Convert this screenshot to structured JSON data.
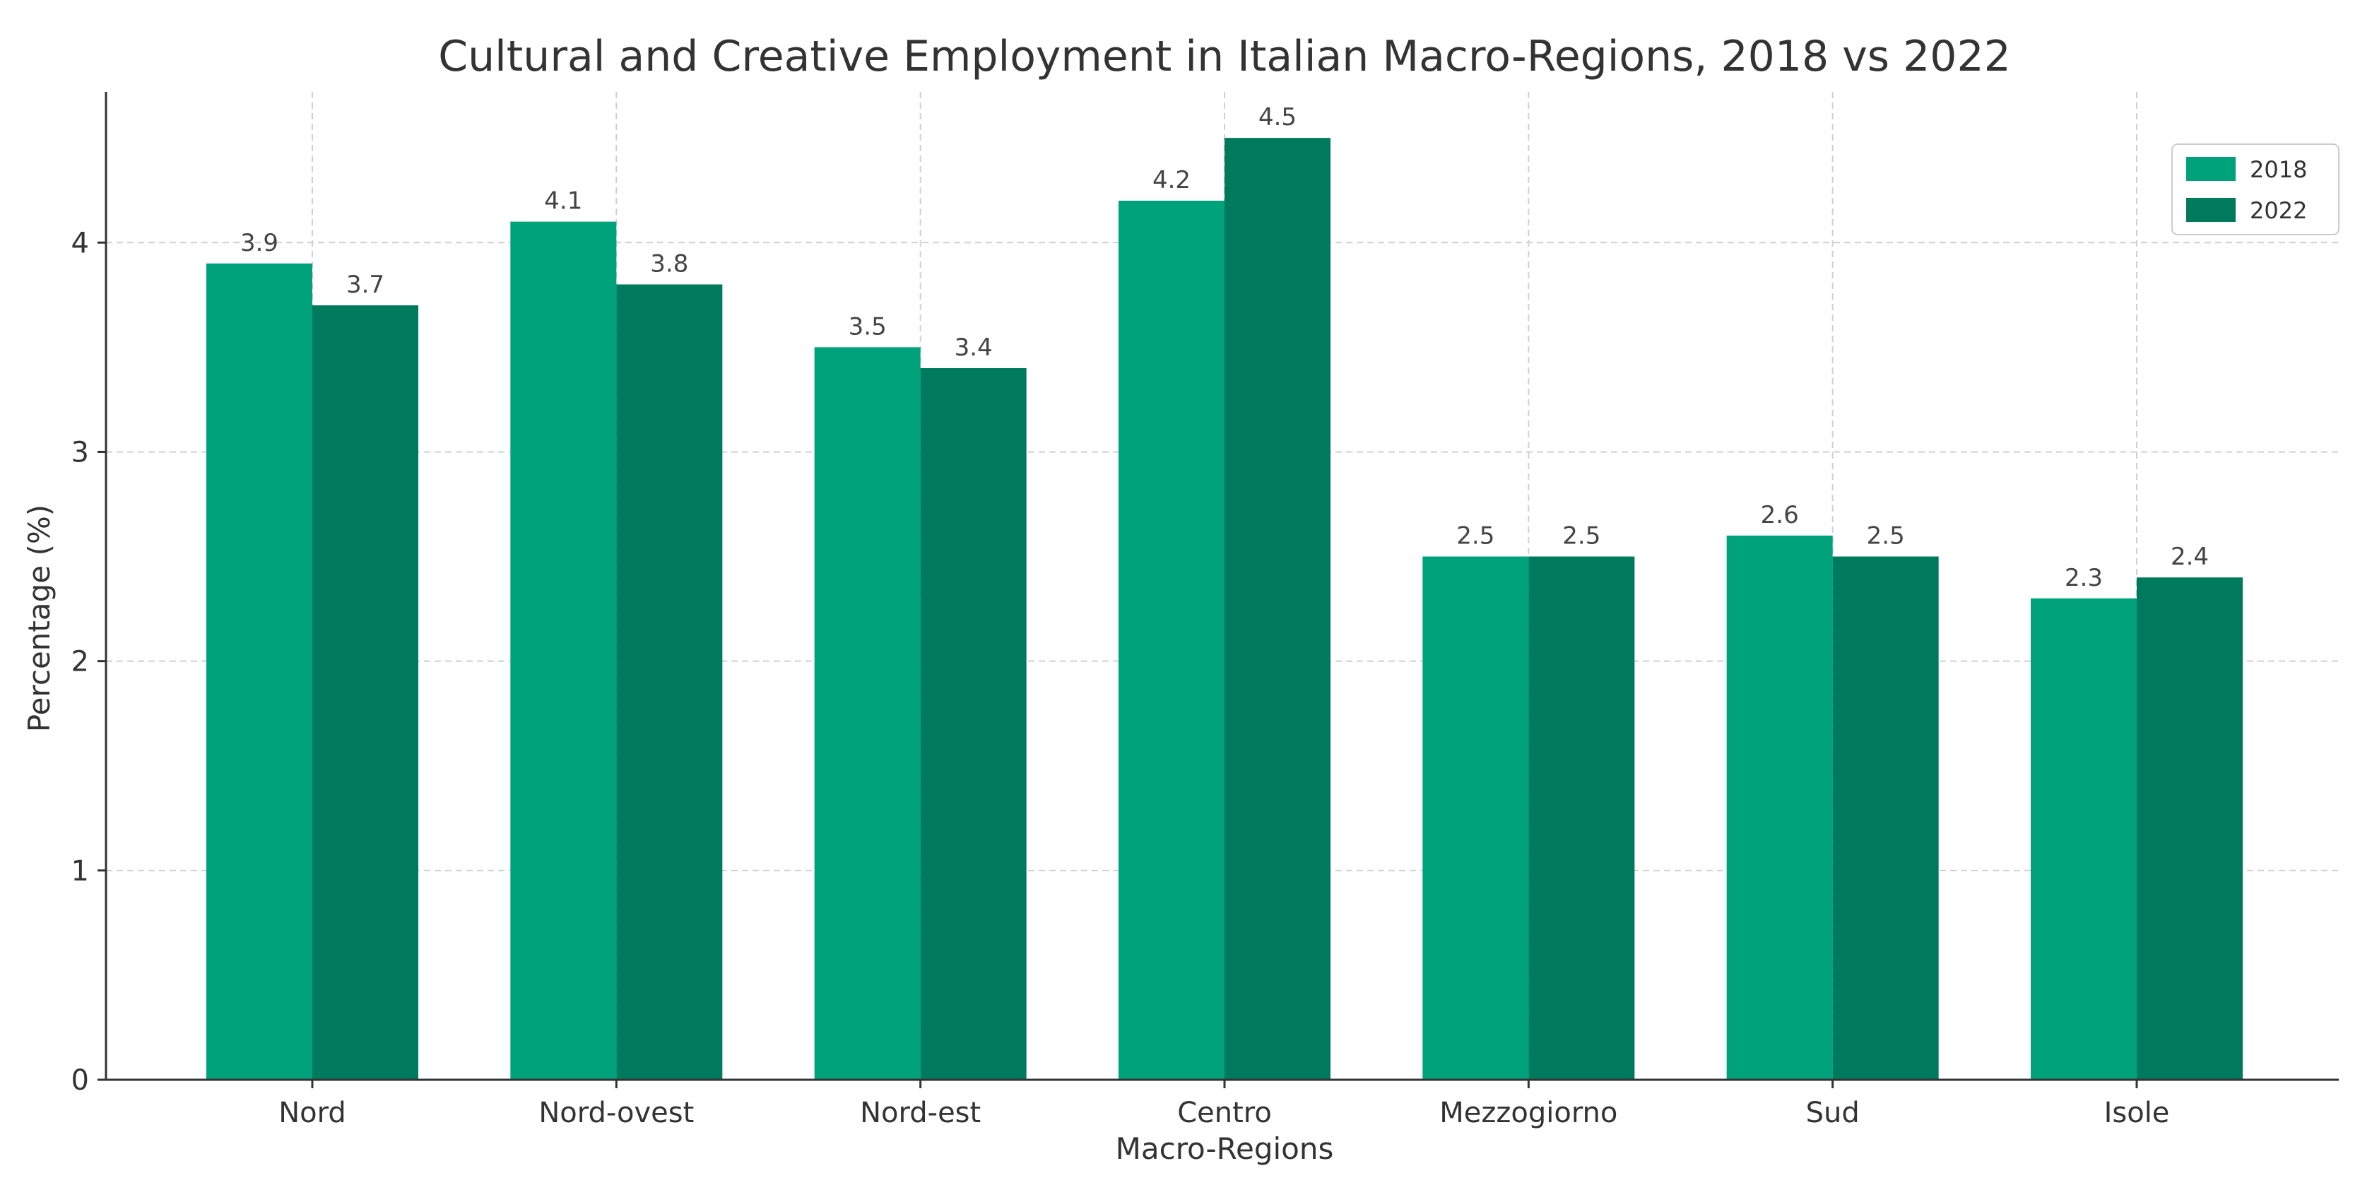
{
  "chart_data": {
    "type": "bar",
    "title": "Cultural and Creative Employment in Italian Macro-Regions, 2018 vs 2022",
    "xlabel": "Macro-Regions",
    "ylabel": "Percentage (%)",
    "categories": [
      "Nord",
      "Nord-ovest",
      "Nord-est",
      "Centro",
      "Mezzogiorno",
      "Sud",
      "Isole"
    ],
    "series": [
      {
        "name": "2018",
        "color": "#00a27b",
        "values": [
          3.9,
          4.1,
          3.5,
          4.2,
          2.5,
          2.6,
          2.3
        ]
      },
      {
        "name": "2022",
        "color": "#007a5c",
        "values": [
          3.7,
          3.8,
          3.4,
          4.5,
          2.5,
          2.5,
          2.4
        ]
      }
    ],
    "ylim": [
      0,
      4.72
    ],
    "yticks": [
      0,
      1,
      2,
      3,
      4
    ],
    "grid": true,
    "legend_position": "top-right",
    "data_labels": true
  }
}
